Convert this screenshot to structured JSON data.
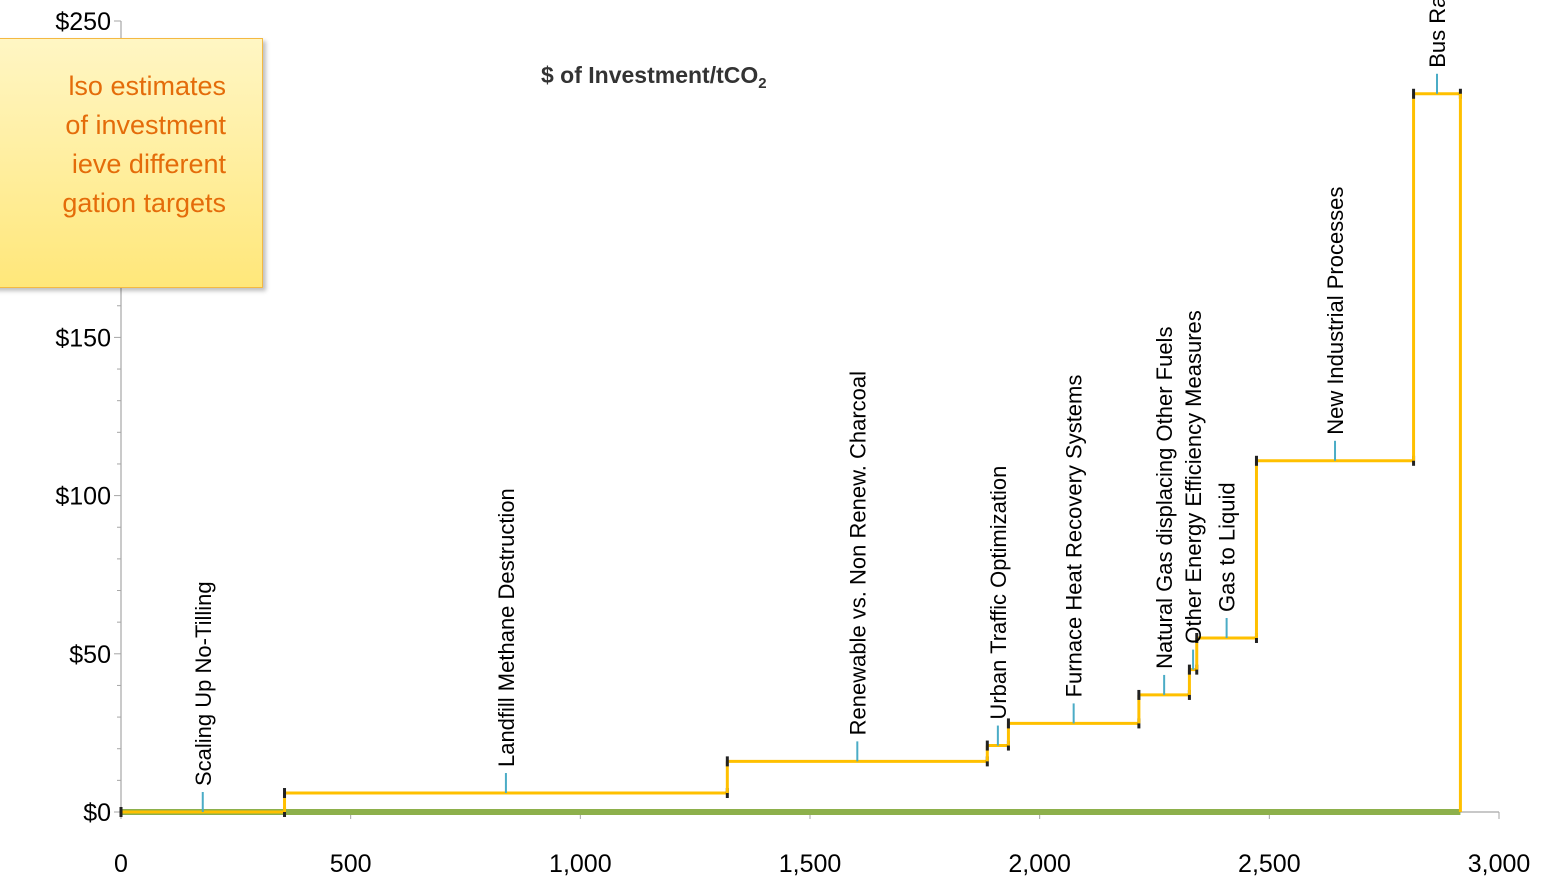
{
  "chart_data": {
    "type": "step",
    "title": "$ of Investment/tCO",
    "title_subscript": "2",
    "xlabel": "",
    "ylabel": "",
    "xlim": [
      0,
      3000
    ],
    "ylim": [
      0,
      250
    ],
    "x_ticks": [
      0,
      500,
      1000,
      1500,
      2000,
      2500,
      3000
    ],
    "x_tick_labels": [
      "0",
      "500",
      "1,000",
      "1,500",
      "2,000",
      "2,500",
      "3,000"
    ],
    "y_ticks": [
      0,
      50,
      100,
      150,
      250
    ],
    "y_tick_labels": [
      "$0",
      "$50",
      "$100",
      "$150",
      "$250"
    ],
    "grid": false,
    "segments": [
      {
        "name": "Scaling Up No-Tilling",
        "x_start": 0,
        "x_end": 356,
        "value": 0
      },
      {
        "name": "Landfill Methane Destruction",
        "x_start": 356,
        "x_end": 1320,
        "value": 6
      },
      {
        "name": "Renewable vs. Non Renew. Charcoal",
        "x_start": 1320,
        "x_end": 1886,
        "value": 16
      },
      {
        "name": "Urban Traffic Optimization",
        "x_start": 1886,
        "x_end": 1932,
        "value": 21
      },
      {
        "name": "Furnace Heat Recovery Systems",
        "x_start": 1932,
        "x_end": 2216,
        "value": 28
      },
      {
        "name": "Natural Gas displacing Other Fuels",
        "x_start": 2216,
        "x_end": 2326,
        "value": 37
      },
      {
        "name": "Other Energy Efficiency Measures",
        "x_start": 2326,
        "x_end": 2342,
        "value": 45
      },
      {
        "name": "Gas to Liquid",
        "x_start": 2342,
        "x_end": 2472,
        "value": 55
      },
      {
        "name": "New Industrial Processes",
        "x_start": 2472,
        "x_end": 2814,
        "value": 111
      },
      {
        "name": "Bus Rapid Transit (BRT)",
        "x_start": 2814,
        "x_end": 2916,
        "value": 227
      }
    ],
    "baseline": {
      "x_start": 0,
      "x_end": 2916,
      "value": 0
    },
    "colors": {
      "step_line": "#ffc000",
      "baseline": "#8db04b",
      "marker": "#4bacc6",
      "axis": "#a6a6a6",
      "text": "#000000"
    }
  },
  "callout": {
    "lines": [
      "lso estimates",
      "of investment",
      "ieve different",
      "gation targets"
    ],
    "text_color": "#e46c0a"
  }
}
